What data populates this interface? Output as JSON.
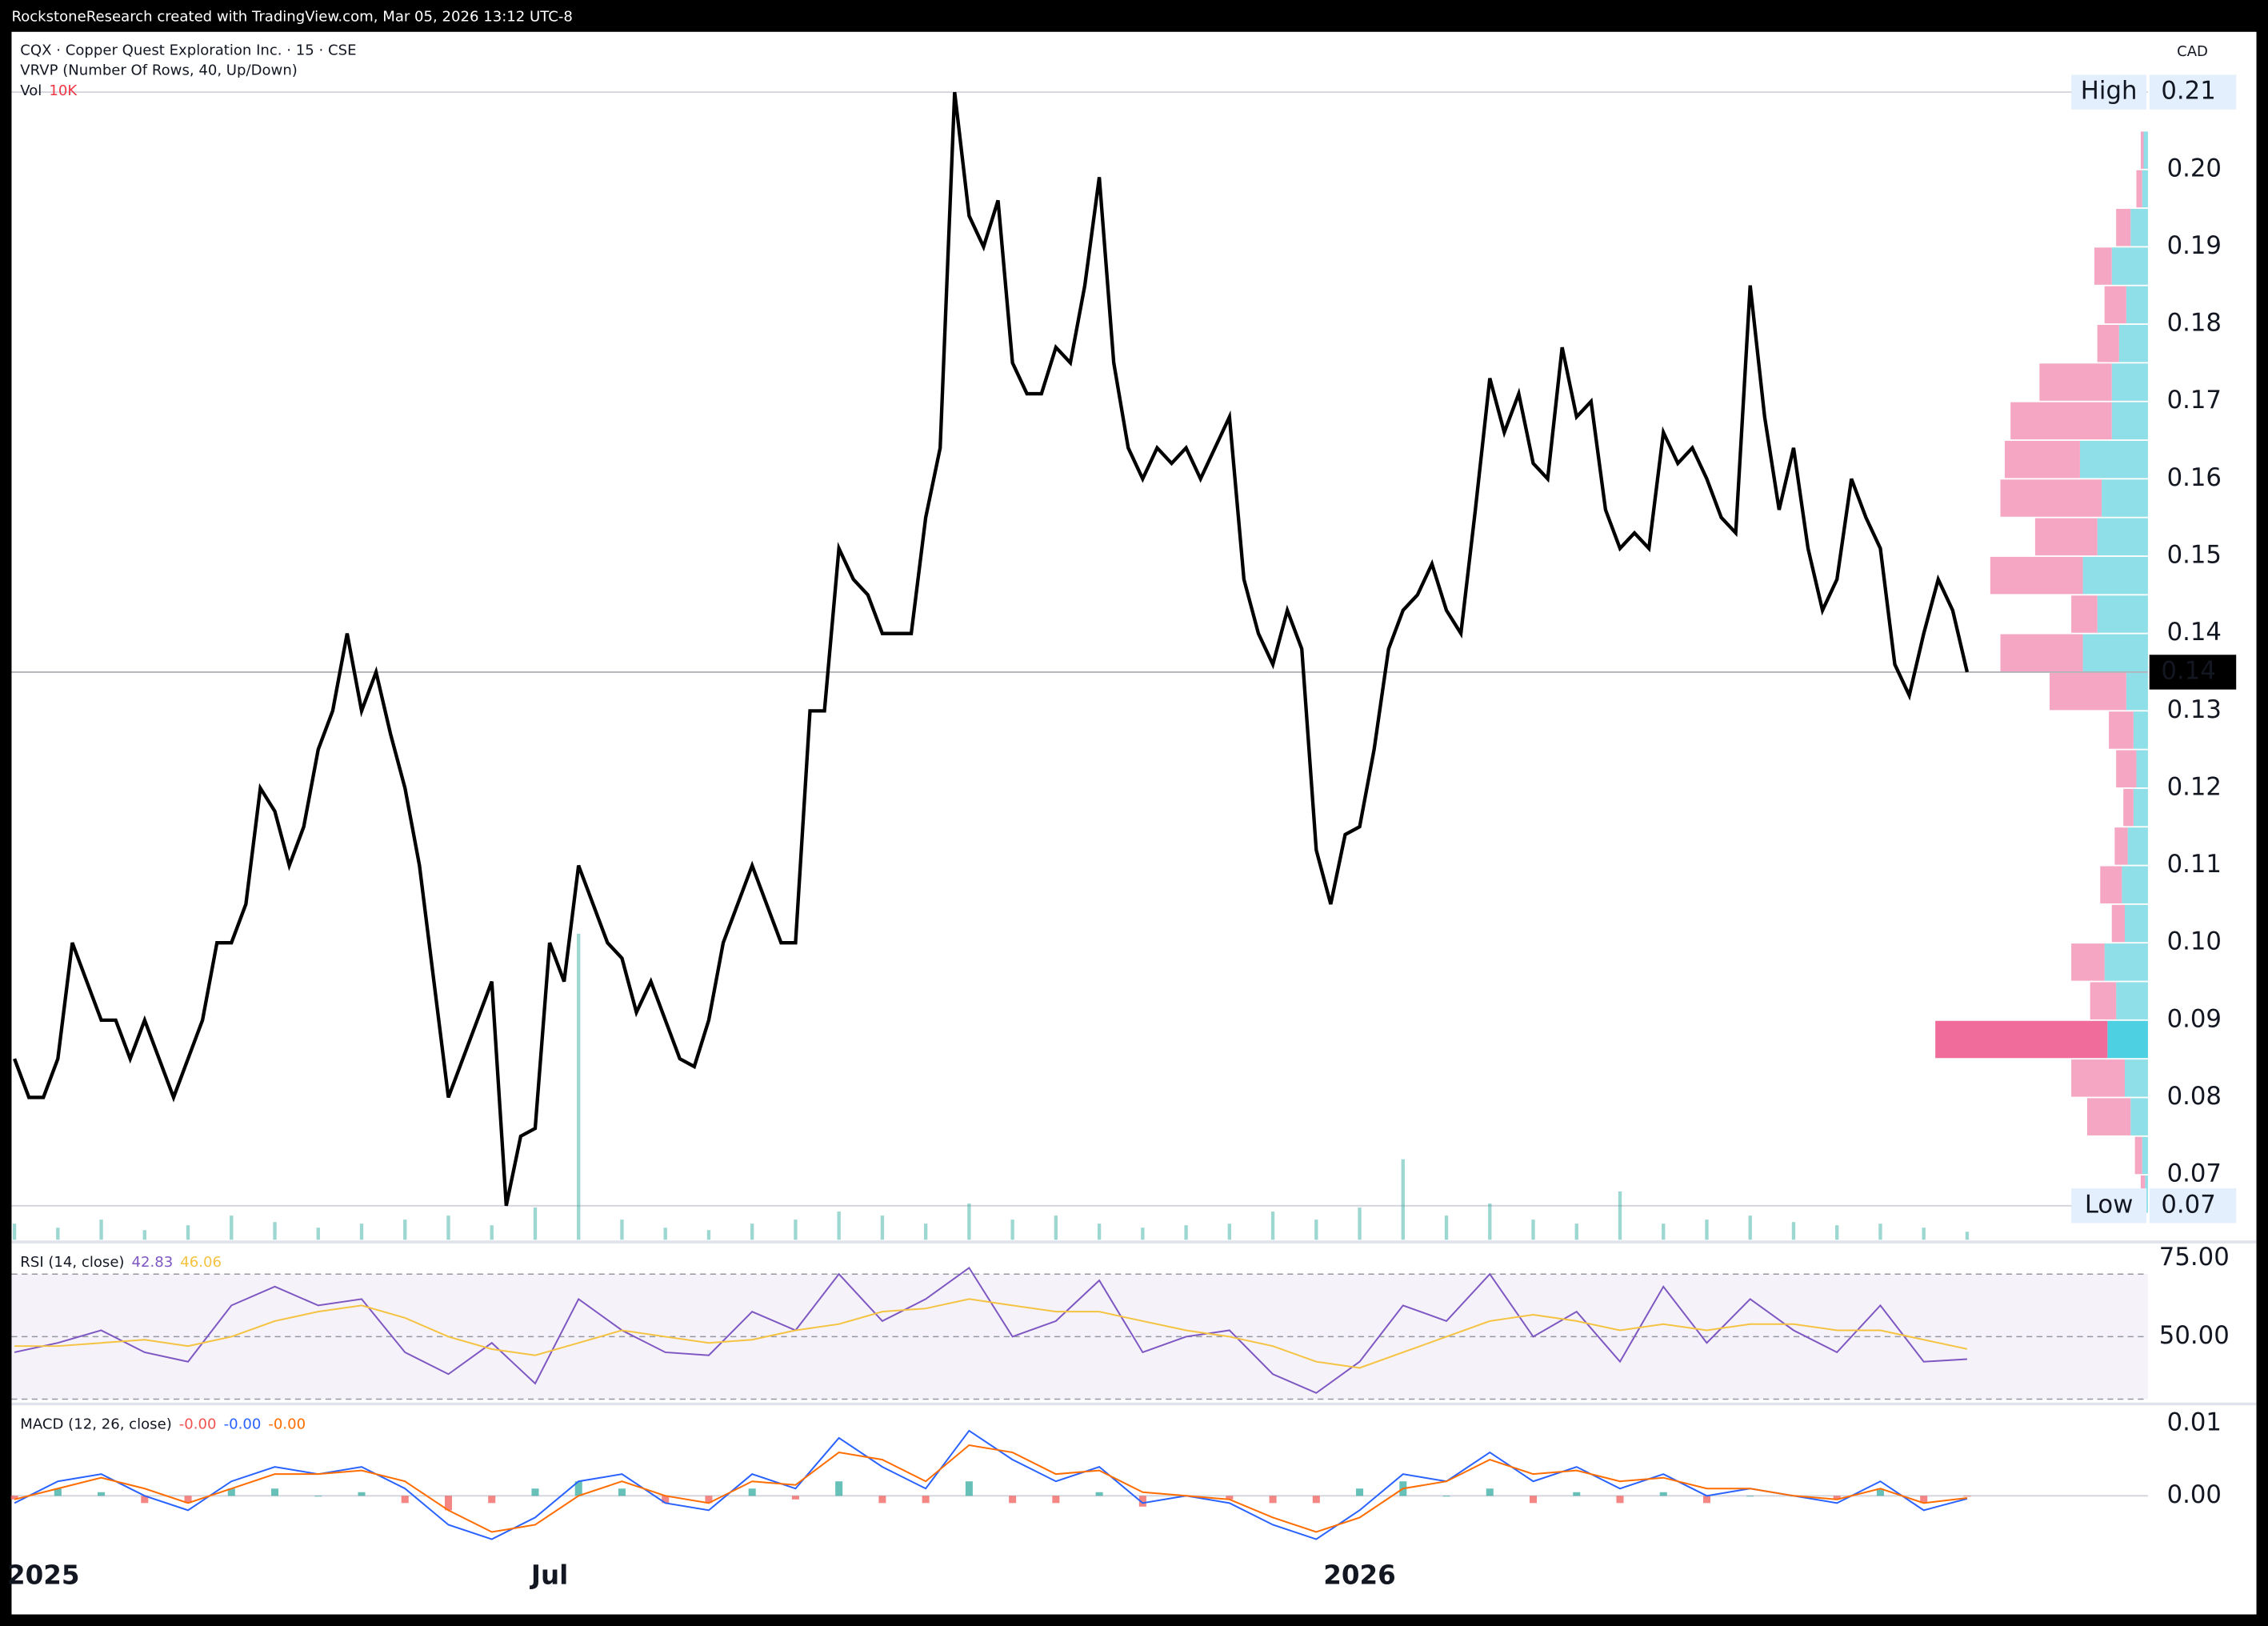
{
  "header": "RockstoneResearch created with TradingView.com, Mar 05, 2026 13:12 UTC-8",
  "chart_data": [
    {
      "type": "line",
      "title": "CQX · Copper Quest Exploration Inc. · 15 · CSE",
      "currency": "CAD",
      "color": "#000000",
      "categories": [
        null,
        null,
        "2025",
        null,
        null,
        null,
        null,
        null,
        null,
        null,
        null,
        null,
        null,
        null,
        null,
        null,
        null,
        null,
        null,
        null,
        null,
        null,
        null,
        null,
        null,
        null,
        null,
        null,
        null,
        null,
        null,
        null,
        null,
        null,
        null,
        null,
        null,
        "Jul",
        null,
        null,
        null,
        null,
        null,
        null,
        null,
        null,
        null,
        null,
        null,
        null,
        null,
        null,
        null,
        null,
        null,
        null,
        null,
        null,
        null,
        null,
        null,
        null,
        null,
        null,
        null,
        null,
        null,
        null,
        null,
        null,
        null,
        null,
        null,
        null,
        null,
        null,
        null,
        null,
        null,
        null,
        null,
        null,
        null,
        null,
        null,
        null,
        null,
        null,
        null,
        null,
        null,
        null,
        null,
        "2026",
        null,
        null,
        null,
        null,
        null,
        null,
        null,
        null,
        null,
        null,
        null,
        null,
        null,
        null,
        null,
        null,
        null,
        null,
        null,
        null,
        null,
        null,
        null,
        null,
        null,
        null,
        null,
        null,
        null,
        null,
        null,
        null,
        null,
        null,
        null,
        null,
        null,
        null,
        null,
        null,
        null,
        null
      ],
      "values": [
        0.085,
        0.08,
        0.08,
        0.085,
        0.1,
        0.095,
        0.09,
        0.09,
        0.085,
        0.09,
        0.085,
        0.08,
        0.085,
        0.09,
        0.1,
        0.1,
        0.105,
        0.12,
        0.117,
        0.11,
        0.115,
        0.125,
        0.13,
        0.14,
        0.13,
        0.135,
        0.127,
        0.12,
        0.11,
        0.095,
        0.08,
        0.085,
        0.09,
        0.095,
        0.066,
        0.075,
        0.076,
        0.1,
        0.095,
        0.11,
        0.105,
        0.1,
        0.098,
        0.091,
        0.095,
        0.09,
        0.085,
        0.084,
        0.09,
        0.1,
        0.105,
        0.11,
        0.105,
        0.1,
        0.1,
        0.13,
        0.13,
        0.151,
        0.147,
        0.145,
        0.14,
        0.14,
        0.14,
        0.155,
        0.164,
        0.21,
        0.194,
        0.19,
        0.196,
        0.175,
        0.171,
        0.171,
        0.177,
        0.175,
        0.185,
        0.199,
        0.175,
        0.164,
        0.16,
        0.164,
        0.162,
        0.164,
        0.16,
        0.164,
        0.168,
        0.147,
        0.14,
        0.136,
        0.143,
        0.138,
        0.112,
        0.105,
        0.114,
        0.115,
        0.125,
        0.138,
        0.143,
        0.145,
        0.149,
        0.143,
        0.14,
        0.156,
        0.173,
        0.166,
        0.171,
        0.162,
        0.16,
        0.177,
        0.168,
        0.17,
        0.156,
        0.151,
        0.153,
        0.151,
        0.166,
        0.162,
        0.164,
        0.16,
        0.155,
        0.153,
        0.185,
        0.168,
        0.156,
        0.164,
        0.151,
        0.143,
        0.147,
        0.16,
        0.155,
        0.151,
        0.136,
        0.132,
        0.14,
        0.147,
        0.143,
        0.135
      ],
      "ylim": [
        0.0616,
        0.2178
      ],
      "yticks": [
        0.07,
        0.08,
        0.09,
        {
          "value": 0.1,
          "label": "0.10"
        },
        0.11,
        0.12,
        0.13,
        0.14,
        0.15,
        0.16,
        0.17,
        0.18,
        0.19,
        {
          "value": 0.2,
          "label": "0.20"
        }
      ],
      "markers": [
        {
          "name": "High",
          "value": 0.21
        },
        {
          "name": "Low",
          "value": 0.066,
          "value_label": "0.07"
        }
      ],
      "marker_color": "#e3effd",
      "last": {
        "value": 0.135,
        "label": "0.14"
      }
    },
    {
      "type": "bar",
      "title": "Vol",
      "legend_value": {
        "value": 10000,
        "label": "10K"
      },
      "legend_color": "#f23645",
      "color": "#26a69a",
      "values": [
        20000,
        15000,
        25000,
        12000,
        18000,
        30000,
        22000,
        15000,
        20000,
        25000,
        30000,
        18000,
        40000,
        380000,
        25000,
        15000,
        12000,
        20000,
        25000,
        35000,
        30000,
        20000,
        45000,
        25000,
        30000,
        20000,
        15000,
        18000,
        20000,
        35000,
        25000,
        40000,
        100000,
        30000,
        45000,
        25000,
        20000,
        60000,
        20000,
        25000,
        30000,
        22000,
        18000,
        20000,
        15000,
        10000
      ],
      "ylim": [
        0,
        1500000
      ]
    },
    {
      "type": "profile",
      "title": "VRVP (Number Of Rows, 40, Up/Down)",
      "levels": [
        0.0675,
        0.0725,
        0.0775,
        0.0825,
        0.0875,
        0.0925,
        0.0975,
        0.1025,
        0.1075,
        0.1125,
        0.1175,
        0.1225,
        0.1275,
        0.1325,
        0.1375,
        0.1425,
        0.1475,
        0.1525,
        0.1575,
        0.1625,
        0.1675,
        0.1725,
        0.1775,
        0.1825,
        0.1875,
        0.1925,
        0.1975,
        0.2025
      ],
      "series": [
        {
          "color": "#8fdfe8",
          "poc_color": "#4dd0e1",
          "values": [
            2,
            4,
            12,
            16,
            28,
            22,
            30,
            16,
            18,
            14,
            10,
            8,
            10,
            15,
            45,
            35,
            45,
            35,
            32,
            47,
            25,
            25,
            20,
            15,
            25,
            12,
            4,
            3
          ]
        },
        {
          "color": "#f5a6c3",
          "poc_color": "#f06c9b",
          "values": [
            3,
            5,
            30,
            37,
            119,
            18,
            23,
            9,
            15,
            9,
            7,
            14,
            17,
            53,
            57,
            18,
            64,
            43,
            70,
            52,
            70,
            50,
            15,
            15,
            12,
            10,
            4,
            2
          ]
        }
      ]
    },
    {
      "type": "line",
      "title": "RSI (14, close)",
      "series": [
        {
          "color": "#7e57c2",
          "values": [
            45,
            48,
            52,
            45,
            42,
            60,
            66,
            60,
            62,
            45,
            38,
            48,
            35,
            62,
            52,
            45,
            44,
            58,
            52,
            70,
            55,
            62,
            72,
            50,
            55,
            68,
            45,
            50,
            52,
            38,
            32,
            42,
            60,
            55,
            70,
            50,
            58,
            42,
            66,
            48,
            62,
            52,
            45,
            60,
            42,
            42.83
          ]
        },
        {
          "color": "#f5c342",
          "values": [
            47,
            47,
            48,
            49,
            47,
            50,
            55,
            58,
            60,
            56,
            50,
            46,
            44,
            48,
            52,
            50,
            48,
            49,
            52,
            54,
            58,
            59,
            62,
            60,
            58,
            58,
            55,
            52,
            50,
            47,
            42,
            40,
            45,
            50,
            55,
            57,
            55,
            52,
            54,
            52,
            54,
            54,
            52,
            52,
            49,
            46.06
          ]
        }
      ],
      "ylim": [
        28.7,
        79.6
      ],
      "yticks": [
        {
          "value": 75,
          "label": "75.00"
        },
        {
          "value": 50,
          "label": "50.00"
        }
      ],
      "levels": [
        30,
        50,
        70
      ],
      "band_color": "#7e57c2"
    },
    {
      "type": "line",
      "title": "MACD (12, 26, close)",
      "series": [
        {
          "type": "bar",
          "color": "#ef5350",
          "positive_color": "#26a69a",
          "last_label": "-0.00",
          "values": [
            -0.0005,
            0.001,
            0.0005,
            -0.001,
            -0.001,
            0.001,
            0.001,
            0,
            0.0005,
            -0.001,
            -0.002,
            -0.001,
            0.001,
            0.002,
            0.001,
            -0.001,
            -0.001,
            0.001,
            -0.0005,
            0.002,
            -0.001,
            -0.001,
            0.002,
            -0.001,
            -0.001,
            0.0005,
            -0.0015,
            0,
            -0.0005,
            -0.001,
            -0.001,
            0.001,
            0.002,
            0,
            0.001,
            -0.001,
            0.0005,
            -0.001,
            0.0005,
            -0.001,
            0,
            0,
            -0.0005,
            0.001,
            -0.001,
            -0.0001
          ]
        },
        {
          "color": "#2962ff",
          "last_label": "-0.00",
          "values": [
            -0.001,
            0.002,
            0.003,
            0,
            -0.002,
            0.002,
            0.004,
            0.003,
            0.004,
            0.001,
            -0.004,
            -0.006,
            -0.003,
            0.002,
            0.003,
            -0.001,
            -0.002,
            0.003,
            0.001,
            0.008,
            0.004,
            0.001,
            0.009,
            0.005,
            0.002,
            0.004,
            -0.001,
            0,
            -0.001,
            -0.004,
            -0.006,
            -0.002,
            0.003,
            0.002,
            0.006,
            0.002,
            0.004,
            0.001,
            0.003,
            0,
            0.001,
            0,
            -0.001,
            0.002,
            -0.002,
            -0.0004
          ]
        },
        {
          "color": "#ff6d00",
          "last_label": "-0.00",
          "values": [
            -0.0005,
            0.001,
            0.0025,
            0.001,
            -0.001,
            0.001,
            0.003,
            0.003,
            0.0035,
            0.002,
            -0.002,
            -0.005,
            -0.004,
            0,
            0.002,
            0,
            -0.001,
            0.002,
            0.0015,
            0.006,
            0.005,
            0.002,
            0.007,
            0.006,
            0.003,
            0.0035,
            0.0005,
            0,
            -0.0005,
            -0.003,
            -0.005,
            -0.003,
            0.001,
            0.002,
            0.005,
            0.003,
            0.0035,
            0.002,
            0.0025,
            0.001,
            0.001,
            0,
            -0.0005,
            0.001,
            -0.001,
            -0.0003
          ]
        }
      ],
      "ylim": [
        -0.0082,
        0.0124
      ],
      "yticks": [
        0.01,
        {
          "value": 0,
          "label": "0.00"
        }
      ],
      "zero_line": true
    }
  ]
}
